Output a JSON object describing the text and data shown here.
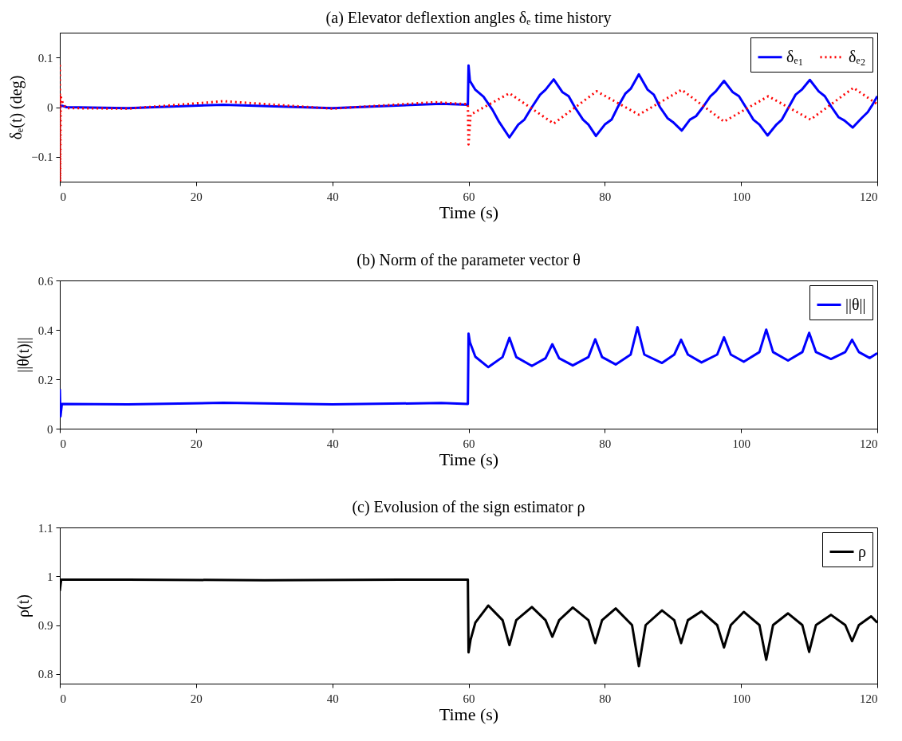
{
  "chart_data": [
    {
      "type": "line",
      "title": "(a) Elevator deflextion angles δₑ time history",
      "xlabel": "Time (s)",
      "ylabel": "δₑ(t) (deg)",
      "xlim": [
        0,
        120
      ],
      "xticks": [
        0,
        20,
        40,
        60,
        80,
        100,
        120
      ],
      "ylim": [
        -0.15,
        0.15
      ],
      "yticks": [
        -0.1,
        0,
        0.1
      ],
      "grid": false,
      "legend": "top right",
      "series": [
        {
          "name": "δₑ₁",
          "color": "#0000ff",
          "line_style": "solid",
          "x": [
            0,
            0.3,
            1,
            10,
            24,
            40,
            56,
            59.9,
            60,
            60.2,
            61,
            62.2,
            63.5,
            64.5,
            66,
            67.3,
            68.2,
            69.3,
            70.5,
            71.3,
            72.5,
            73.8,
            74.7,
            75.6,
            76.8,
            77.6,
            78.7,
            80,
            81,
            81.9,
            83,
            83.8,
            85,
            86.3,
            87.2,
            88.1,
            89.2,
            90,
            91.3,
            92.5,
            93.4,
            94.4,
            95.5,
            96.3,
            97.5,
            98.8,
            99.7,
            100.7,
            101.8,
            102.7,
            103.9,
            105.2,
            106,
            107,
            108,
            108.9,
            110.1,
            111.4,
            112.3,
            113.3,
            114.3,
            115.2,
            116.4,
            117.7,
            118.6,
            119.3,
            120
          ],
          "values": [
            0,
            0.003,
            0,
            -0.002,
            0.005,
            -0.002,
            0.007,
            0.005,
            0.084,
            0.053,
            0.035,
            0.021,
            -0.005,
            -0.03,
            -0.061,
            -0.035,
            -0.025,
            0,
            0.025,
            0.035,
            0.056,
            0.03,
            0.022,
            0,
            -0.025,
            -0.035,
            -0.058,
            -0.035,
            -0.025,
            0,
            0.027,
            0.037,
            0.066,
            0.035,
            0.025,
            0,
            -0.022,
            -0.03,
            -0.047,
            -0.025,
            -0.018,
            0,
            0.022,
            0.032,
            0.053,
            0.03,
            0.022,
            0,
            -0.025,
            -0.035,
            -0.057,
            -0.035,
            -0.025,
            0,
            0.025,
            0.035,
            0.055,
            0.032,
            0.022,
            0,
            -0.02,
            -0.027,
            -0.041,
            -0.022,
            -0.01,
            0.005,
            0.022
          ]
        },
        {
          "name": "δₑ₂",
          "color": "#ff0000",
          "line_style": "dotted",
          "x": [
            0,
            0.05,
            0.15,
            0.5,
            1,
            10,
            24,
            40,
            55,
            59.9,
            60,
            60.3,
            66,
            72.5,
            78.8,
            85,
            91.3,
            97.5,
            104,
            110.2,
            116.5,
            120
          ],
          "values": [
            0.085,
            -0.15,
            0.02,
            0.005,
            -0.002,
            -0.003,
            0.012,
            -0.003,
            0.01,
            0.006,
            -0.075,
            -0.015,
            0.028,
            -0.033,
            0.032,
            -0.015,
            0.035,
            -0.029,
            0.022,
            -0.025,
            0.039,
            0.006
          ]
        }
      ]
    },
    {
      "type": "line",
      "title": "(b) Norm of the parameter vector θ",
      "xlabel": "Time (s)",
      "ylabel": "||θ(t)||",
      "xlim": [
        0,
        120
      ],
      "xticks": [
        0,
        20,
        40,
        60,
        80,
        100,
        120
      ],
      "ylim": [
        0,
        0.6
      ],
      "yticks": [
        0,
        0.2,
        0.4,
        0.6
      ],
      "grid": false,
      "legend": "top right",
      "series": [
        {
          "name": "||θ||",
          "color": "#0000ff",
          "line_style": "solid",
          "x": [
            0,
            0.1,
            0.3,
            10,
            24,
            40,
            56,
            59.9,
            60,
            60.2,
            61,
            62.9,
            65,
            66,
            67,
            69.3,
            71.3,
            72.3,
            73.3,
            75.3,
            77.6,
            78.6,
            79.6,
            81.6,
            83.8,
            84.8,
            85.8,
            88.4,
            90.2,
            91.2,
            92.2,
            94.2,
            96.5,
            97.5,
            98.5,
            100.4,
            102.7,
            103.7,
            104.7,
            106.9,
            109,
            110,
            111,
            113.2,
            115.3,
            116.3,
            117.3,
            118.9,
            120
          ],
          "values": [
            0.16,
            0.05,
            0.1,
            0.098,
            0.105,
            0.098,
            0.104,
            0.1,
            0.385,
            0.35,
            0.291,
            0.249,
            0.29,
            0.368,
            0.29,
            0.254,
            0.285,
            0.342,
            0.285,
            0.256,
            0.29,
            0.362,
            0.29,
            0.26,
            0.3,
            0.411,
            0.3,
            0.266,
            0.3,
            0.36,
            0.3,
            0.268,
            0.3,
            0.37,
            0.3,
            0.271,
            0.31,
            0.401,
            0.31,
            0.276,
            0.31,
            0.388,
            0.31,
            0.282,
            0.31,
            0.36,
            0.31,
            0.286,
            0.306
          ]
        }
      ]
    },
    {
      "type": "line",
      "title": "(c) Evolusion of the sign estimator ρ",
      "xlabel": "Time (s)",
      "ylabel": "ρ(t)",
      "xlim": [
        0,
        120
      ],
      "xticks": [
        0,
        20,
        40,
        60,
        80,
        100,
        120
      ],
      "ylim": [
        0.78,
        1.1
      ],
      "yticks": [
        0.8,
        0.9,
        1,
        1.1
      ],
      "grid": false,
      "legend": "top right",
      "series": [
        {
          "name": "ρ",
          "color": "#000000",
          "line_style": "solid",
          "x": [
            0,
            0.2,
            10,
            30,
            50,
            59.9,
            60,
            60.3,
            61,
            62.9,
            65,
            66,
            67,
            69.3,
            71.3,
            72.3,
            73.3,
            75.3,
            77.6,
            78.6,
            79.6,
            81.6,
            84,
            85,
            86,
            88.4,
            90.2,
            91.2,
            92.2,
            94.2,
            96.5,
            97.5,
            98.5,
            100.4,
            102.7,
            103.7,
            104.7,
            106.9,
            109,
            110,
            111,
            113.2,
            115.3,
            116.3,
            117.3,
            119.1,
            120
          ],
          "values": [
            0.97,
            0.993,
            0.993,
            0.992,
            0.993,
            0.993,
            0.844,
            0.87,
            0.905,
            0.94,
            0.91,
            0.859,
            0.91,
            0.937,
            0.91,
            0.876,
            0.91,
            0.936,
            0.91,
            0.863,
            0.91,
            0.934,
            0.9,
            0.816,
            0.9,
            0.93,
            0.91,
            0.863,
            0.91,
            0.928,
            0.9,
            0.854,
            0.9,
            0.927,
            0.9,
            0.829,
            0.9,
            0.924,
            0.9,
            0.845,
            0.9,
            0.921,
            0.9,
            0.867,
            0.9,
            0.918,
            0.905
          ]
        }
      ]
    }
  ]
}
